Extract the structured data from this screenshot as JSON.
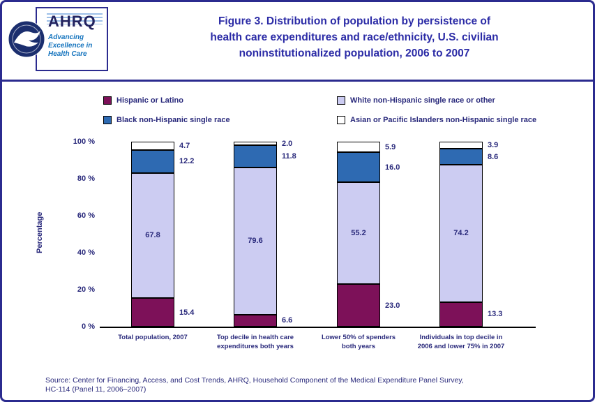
{
  "header": {
    "title_lines": [
      "Figure 3. Distribution of population by persistence of",
      "health care expenditures and race/ethnicity, U.S. civilian",
      "noninstitutionalized population, 2006 to 2007"
    ],
    "logo": {
      "name": "AHRQ",
      "tagline_lines": [
        "Advancing",
        "Excellence in",
        "Health Care"
      ]
    }
  },
  "legend": [
    {
      "label": "Hispanic or Latino",
      "color": "#7D1159"
    },
    {
      "label": "White non-Hispanic single race or other",
      "color": "#CCCCF2"
    },
    {
      "label": "Black non-Hispanic single race",
      "color": "#2E6AB2"
    },
    {
      "label": "Asian or Pacific Islanders non-Hispanic single race",
      "color": "#FFFFFF"
    }
  ],
  "chart_data": {
    "type": "bar",
    "subtype": "stacked-vertical",
    "ylabel": "Percentage",
    "ylim": [
      0,
      100
    ],
    "ytick_values": [
      0,
      20,
      40,
      60,
      80,
      100
    ],
    "ytick_labels": [
      "0 %",
      "20 %",
      "40 %",
      "60 %",
      "80 %",
      "100 %"
    ],
    "grid": false,
    "legend_position": "top",
    "categories": [
      "Total population, 2007",
      "Top decile in health care\nexpenditures both years",
      "Lower 50% of spenders\nboth years",
      "Individuals in top decile in\n2006 and lower 75% in 2007"
    ],
    "series": [
      {
        "name": "Hispanic or Latino",
        "color": "#7D1159",
        "values": [
          15.4,
          6.6,
          23.0,
          13.3
        ]
      },
      {
        "name": "White non-Hispanic single race or other",
        "color": "#CCCCF2",
        "values": [
          67.8,
          79.6,
          55.2,
          74.2
        ]
      },
      {
        "name": "Black non-Hispanic single race",
        "color": "#2E6AB2",
        "values": [
          12.2,
          11.8,
          16.0,
          8.6
        ]
      },
      {
        "name": "Asian or Pacific Islanders non-Hispanic single race",
        "color": "#FFFFFF",
        "values": [
          4.7,
          2.0,
          5.9,
          3.9
        ]
      }
    ]
  },
  "source_lines": [
    "Source: Center for Financing, Access, and Cost Trends, AHRQ, Household Component of the Medical Expenditure Panel Survey,",
    "HC-114 (Panel 11, 2006–2007)"
  ],
  "colors": {
    "border": "#2B2B8F",
    "title": "#2B2BA6",
    "text": "#29297B",
    "logo_blue": "#1574BE"
  }
}
